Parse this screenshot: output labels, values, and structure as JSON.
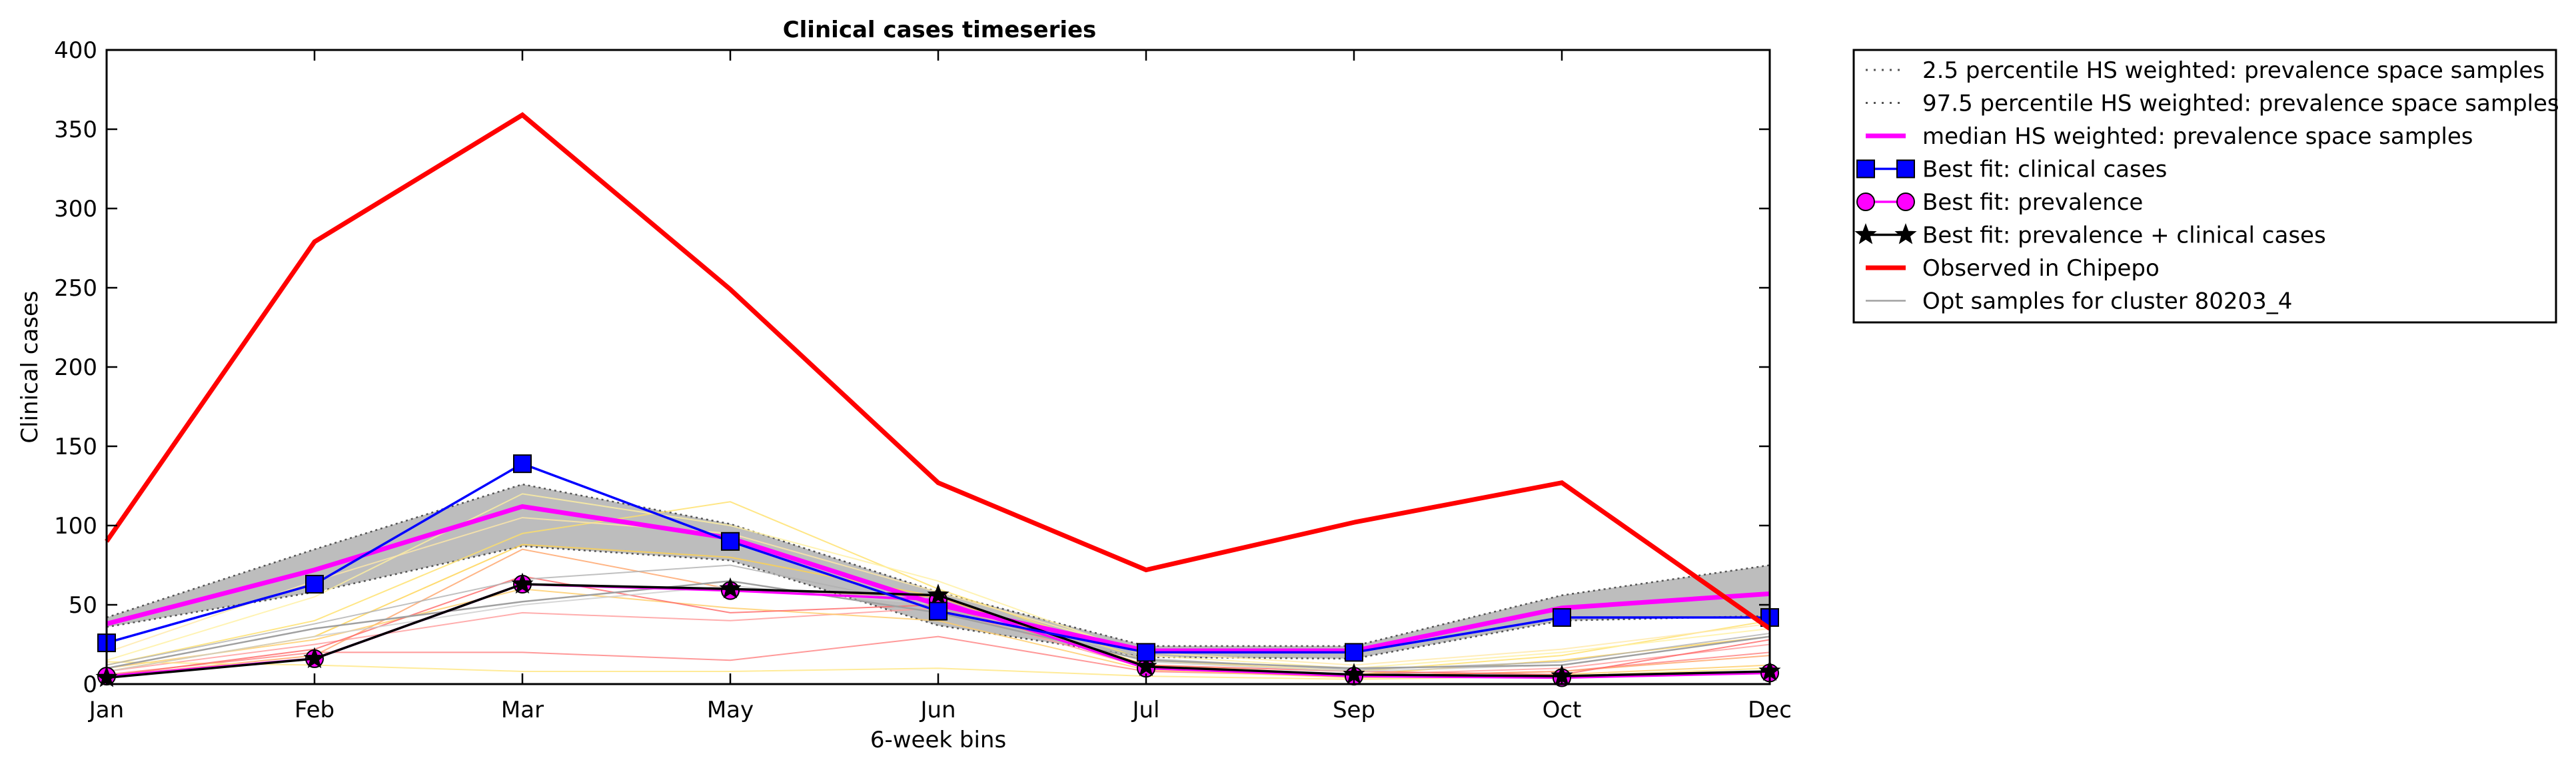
{
  "chart_data": {
    "type": "line",
    "title": "Clinical cases timeseries",
    "xlabel": "6-week bins",
    "ylabel": "Clinical cases",
    "categories": [
      "Jan",
      "Feb",
      "Mar",
      "May",
      "Jun",
      "Jul",
      "Sep",
      "Oct",
      "Dec"
    ],
    "ylim": [
      0,
      400
    ],
    "yticks": [
      0,
      50,
      100,
      150,
      200,
      250,
      300,
      350,
      400
    ],
    "grid": false,
    "legend_position": "outside-top-right",
    "band": {
      "lower_name": "2.5 percentile HS weighted: prevalence space samples",
      "upper_name": "97.5 percentile HS weighted: prevalence space samples",
      "lower": [
        36,
        58,
        87,
        78,
        37,
        17,
        16,
        40,
        43
      ],
      "upper": [
        42,
        85,
        126,
        101,
        58,
        24,
        24,
        56,
        75
      ],
      "fill_color": "#bdbdbd",
      "line_color": "#555555"
    },
    "series": [
      {
        "name": "median HS weighted: prevalence space samples",
        "color": "#ff00ff",
        "values": [
          38,
          72,
          112,
          92,
          50,
          21,
          21,
          48,
          57
        ],
        "style": "line-thick"
      },
      {
        "name": "Best fit: clinical cases",
        "color": "#0000ff",
        "values": [
          26,
          63,
          139,
          90,
          46,
          20,
          20,
          42,
          42
        ],
        "style": "square"
      },
      {
        "name": "Best fit: prevalence",
        "color": "#ff00ff",
        "values": [
          5,
          16,
          63,
          59,
          53,
          10,
          5,
          4,
          7
        ],
        "style": "circle"
      },
      {
        "name": "Best fit: prevalence + clinical cases",
        "color": "#000000",
        "values": [
          4,
          16,
          63,
          60,
          56,
          11,
          6,
          5,
          8
        ],
        "style": "star"
      },
      {
        "name": "Observed in Chipepo",
        "color": "#ff0000",
        "values": [
          90,
          279,
          359,
          249,
          127,
          72,
          102,
          127,
          35
        ],
        "style": "line-thick"
      },
      {
        "name": "Opt samples for cluster 80203_4",
        "color": "#a0a0a0",
        "values": [
          10,
          35,
          52,
          65,
          45,
          15,
          10,
          12,
          30
        ],
        "style": "line-thin"
      }
    ],
    "sample_lines": [
      {
        "color": "#ffe066",
        "values": [
          12,
          40,
          95,
          115,
          60,
          15,
          8,
          18,
          40
        ]
      },
      {
        "color": "#fff0a0",
        "values": [
          15,
          55,
          120,
          100,
          65,
          18,
          10,
          20,
          35
        ]
      },
      {
        "color": "#ffd24d",
        "values": [
          8,
          30,
          88,
          80,
          55,
          12,
          6,
          15,
          30
        ]
      },
      {
        "color": "#ffe9a8",
        "values": [
          20,
          65,
          105,
          95,
          58,
          20,
          12,
          22,
          38
        ]
      },
      {
        "color": "#ff8080",
        "values": [
          6,
          20,
          20,
          15,
          30,
          8,
          5,
          8,
          20
        ]
      },
      {
        "color": "#ff9999",
        "values": [
          8,
          25,
          45,
          40,
          48,
          10,
          6,
          10,
          25
        ]
      },
      {
        "color": "#ffa366",
        "values": [
          5,
          18,
          85,
          60,
          55,
          10,
          5,
          8,
          18
        ]
      },
      {
        "color": "#ffcc66",
        "values": [
          10,
          28,
          60,
          48,
          40,
          9,
          4,
          6,
          12
        ]
      },
      {
        "color": "#ffe680",
        "values": [
          14,
          12,
          8,
          8,
          10,
          5,
          3,
          5,
          10
        ]
      },
      {
        "color": "#ff6666",
        "values": [
          5,
          22,
          68,
          45,
          50,
          12,
          8,
          6,
          28
        ]
      },
      {
        "color": "#cccccc",
        "values": [
          8,
          30,
          50,
          62,
          50,
          14,
          8,
          12,
          30
        ]
      },
      {
        "color": "#b0b0b0",
        "values": [
          12,
          38,
          66,
          75,
          48,
          16,
          9,
          14,
          32
        ]
      }
    ]
  }
}
